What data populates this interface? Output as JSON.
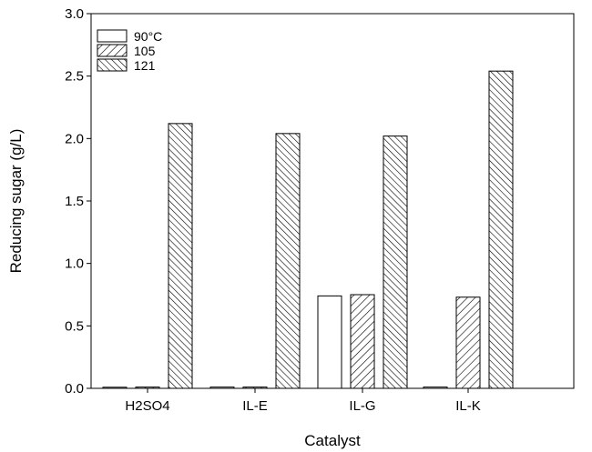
{
  "chart_data": {
    "type": "bar",
    "title": "",
    "xlabel": "Catalyst",
    "ylabel": "Reducing sugar (g/L)",
    "ylim": [
      0,
      3.0
    ],
    "yticks": [
      "0.0",
      "0.5",
      "1.0",
      "1.5",
      "2.0",
      "2.5",
      "3.0"
    ],
    "categories": [
      "H2SO4",
      "IL-E",
      "IL-G",
      "IL-K"
    ],
    "series": [
      {
        "name": "90°C",
        "values": [
          0.0,
          0.01,
          0.74,
          0.01
        ]
      },
      {
        "name": "105",
        "values": [
          0.01,
          0.01,
          0.75,
          0.73
        ]
      },
      {
        "name": "121",
        "values": [
          2.12,
          2.04,
          2.02,
          2.54
        ]
      }
    ],
    "legend": "top-left",
    "grid": false
  }
}
